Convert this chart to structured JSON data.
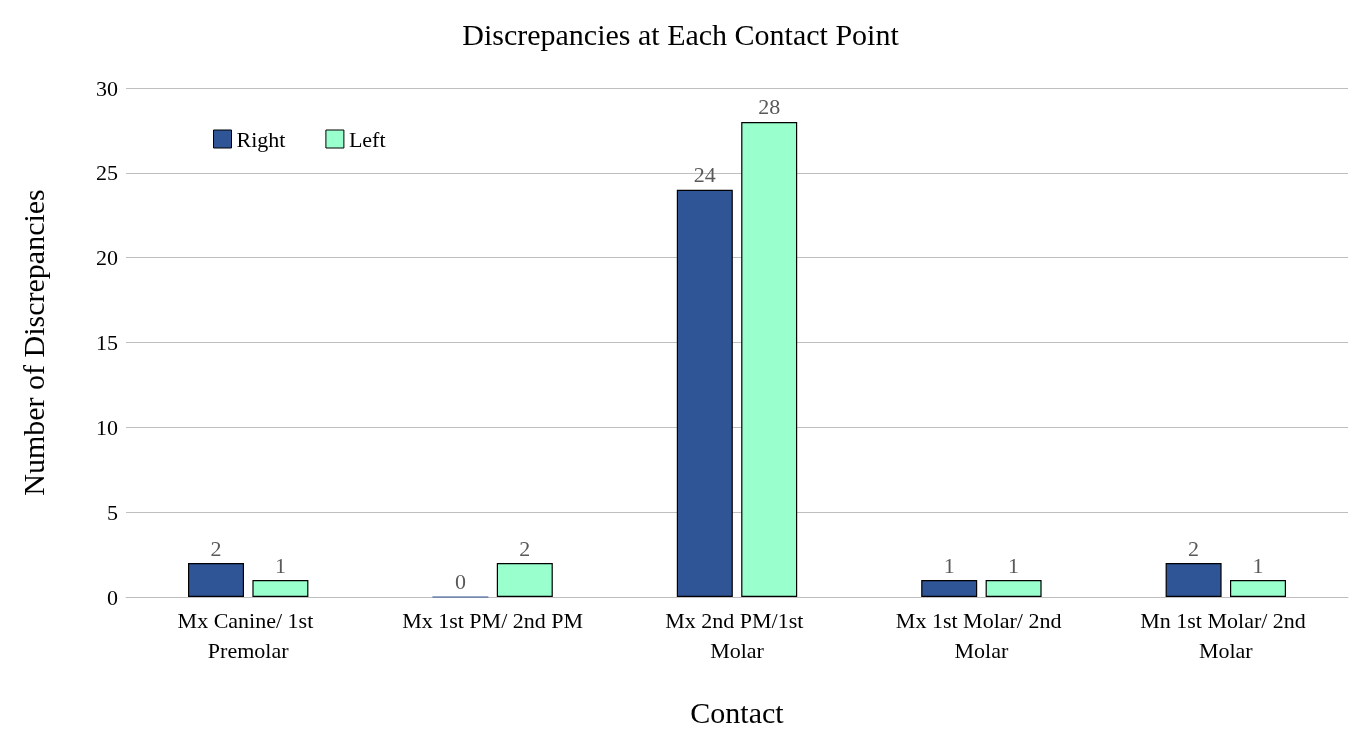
{
  "chart_data": {
    "type": "bar",
    "title": "Discrepancies at Each Contact Point",
    "xlabel": "Contact",
    "ylabel": "Number of Discrepancies",
    "categories": [
      "Mx Canine/ 1st Premolar",
      "Mx 1st PM/ 2nd PM",
      "Mx 2nd PM/1st Molar",
      "Mx 1st Molar/ 2nd Molar",
      "Mn 1st Molar/ 2nd Molar"
    ],
    "series": [
      {
        "name": "Right",
        "color": "#2f5597",
        "values": [
          2,
          0,
          24,
          1,
          2
        ]
      },
      {
        "name": "Left",
        "color": "#99ffcc",
        "values": [
          1,
          2,
          28,
          1,
          1
        ]
      }
    ],
    "ylim": [
      0,
      30
    ],
    "yticks": [
      0,
      5,
      10,
      15,
      20,
      25,
      30
    ],
    "grid": "y",
    "legend": "top left",
    "data_labels": true
  }
}
